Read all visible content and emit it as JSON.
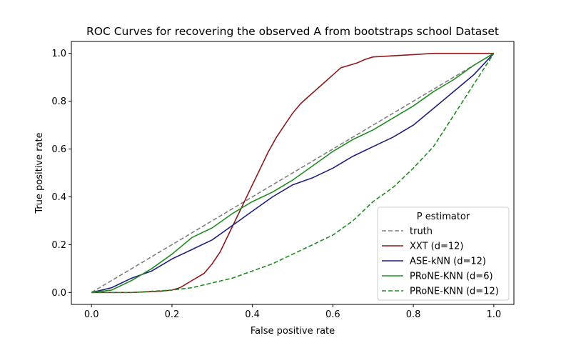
{
  "chart_data": {
    "type": "line",
    "title": "ROC Curves for recovering the observed A from bootstraps school Dataset",
    "xlabel": "False positive rate",
    "ylabel": "True positive rate",
    "xlim": [
      -0.05,
      1.05
    ],
    "ylim": [
      -0.05,
      1.05
    ],
    "xticks": [
      "0.0",
      "0.2",
      "0.4",
      "0.6",
      "0.8",
      "1.0"
    ],
    "yticks": [
      "0.0",
      "0.2",
      "0.4",
      "0.6",
      "0.8",
      "1.0"
    ],
    "grid": false,
    "legend": {
      "title": "P estimator",
      "placement": "bottom-right"
    },
    "series": [
      {
        "name": "truth",
        "color": "#808080",
        "dash": "dashed",
        "x": [
          0,
          1
        ],
        "y": [
          0,
          1
        ]
      },
      {
        "name": "XXT (d=12)",
        "color": "#8b1a1a",
        "dash": "solid",
        "x": [
          0,
          0.1,
          0.17,
          0.2,
          0.22,
          0.25,
          0.28,
          0.3,
          0.32,
          0.34,
          0.36,
          0.38,
          0.4,
          0.42,
          0.44,
          0.46,
          0.48,
          0.5,
          0.52,
          0.54,
          0.56,
          0.58,
          0.6,
          0.62,
          0.64,
          0.66,
          0.68,
          0.7,
          0.75,
          0.8,
          0.85,
          0.9,
          1.0
        ],
        "y": [
          0,
          0.0,
          0.005,
          0.01,
          0.02,
          0.05,
          0.08,
          0.12,
          0.17,
          0.24,
          0.31,
          0.38,
          0.45,
          0.52,
          0.59,
          0.65,
          0.7,
          0.75,
          0.79,
          0.82,
          0.85,
          0.88,
          0.91,
          0.94,
          0.95,
          0.96,
          0.975,
          0.985,
          0.99,
          0.995,
          1.0,
          1.0,
          1.0
        ]
      },
      {
        "name": "ASE-kNN (d=12)",
        "color": "#1f1f7a",
        "dash": "solid",
        "x": [
          0,
          0.05,
          0.1,
          0.15,
          0.2,
          0.25,
          0.3,
          0.35,
          0.4,
          0.45,
          0.5,
          0.55,
          0.6,
          0.65,
          0.7,
          0.75,
          0.8,
          0.85,
          0.9,
          0.95,
          1.0
        ],
        "y": [
          0,
          0.02,
          0.06,
          0.09,
          0.14,
          0.18,
          0.22,
          0.28,
          0.34,
          0.4,
          0.45,
          0.48,
          0.52,
          0.57,
          0.61,
          0.65,
          0.7,
          0.77,
          0.84,
          0.91,
          1.0
        ]
      },
      {
        "name": "PRoNE-KNN (d=6)",
        "color": "#228b22",
        "dash": "solid",
        "x": [
          0,
          0.05,
          0.1,
          0.15,
          0.2,
          0.25,
          0.3,
          0.35,
          0.4,
          0.45,
          0.5,
          0.55,
          0.6,
          0.65,
          0.7,
          0.75,
          0.8,
          0.85,
          0.9,
          0.95,
          1.0
        ],
        "y": [
          0,
          0.01,
          0.05,
          0.1,
          0.16,
          0.23,
          0.27,
          0.33,
          0.38,
          0.42,
          0.47,
          0.53,
          0.59,
          0.64,
          0.68,
          0.73,
          0.78,
          0.84,
          0.89,
          0.95,
          1.0
        ]
      },
      {
        "name": "PRoNE-KNN (d=12)",
        "color": "#228b22",
        "dash": "dashed",
        "x": [
          0,
          0.1,
          0.2,
          0.25,
          0.3,
          0.35,
          0.4,
          0.45,
          0.5,
          0.55,
          0.6,
          0.65,
          0.7,
          0.75,
          0.8,
          0.85,
          0.9,
          0.95,
          1.0
        ],
        "y": [
          0,
          0.0,
          0.01,
          0.02,
          0.04,
          0.06,
          0.09,
          0.12,
          0.16,
          0.2,
          0.24,
          0.3,
          0.38,
          0.44,
          0.52,
          0.61,
          0.74,
          0.87,
          1.0
        ]
      }
    ]
  }
}
